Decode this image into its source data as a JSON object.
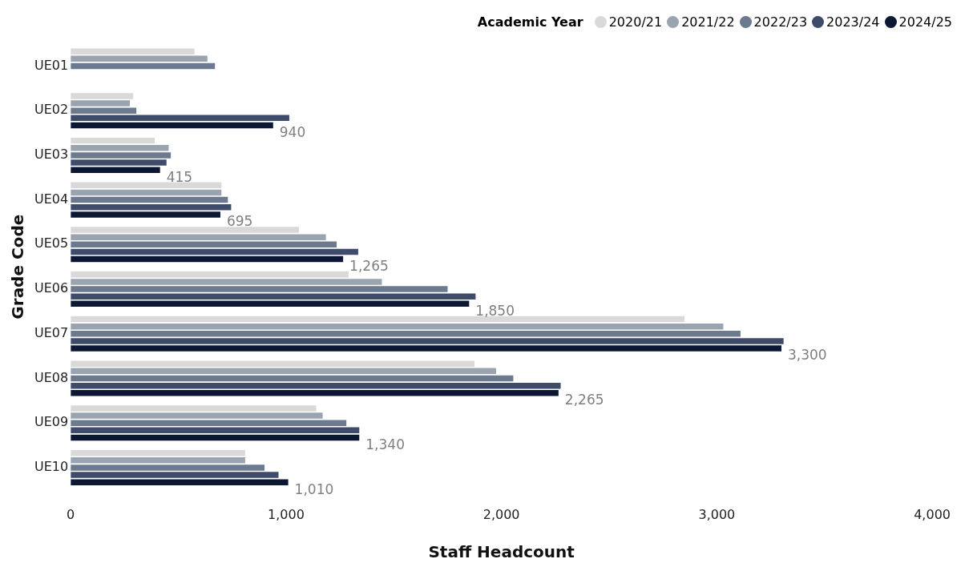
{
  "chart_data": {
    "type": "bar",
    "orientation": "horizontal",
    "xlabel": "Staff Headcount",
    "ylabel": "Grade Code",
    "legend_title": "Academic Year",
    "legend": "top right",
    "grid": false,
    "categories": [
      "UE01",
      "UE02",
      "UE03",
      "UE04",
      "UE05",
      "UE06",
      "UE07",
      "UE08",
      "UE09",
      "UE10"
    ],
    "xlim": [
      0,
      4000
    ],
    "xticks": [
      {
        "value": 0,
        "label": "0"
      },
      {
        "value": 1000,
        "label": "1,000"
      },
      {
        "value": 2000,
        "label": "2,000"
      },
      {
        "value": 3000,
        "label": "3,000"
      },
      {
        "value": 4000,
        "label": "4,000"
      }
    ],
    "series": [
      {
        "name": "2020/21",
        "color": "#d9d9d9",
        "values": [
          575,
          290,
          390,
          700,
          1060,
          1290,
          2850,
          1875,
          1140,
          810
        ]
      },
      {
        "name": "2021/22",
        "color": "#9aa3b0",
        "values": [
          635,
          275,
          455,
          700,
          1185,
          1445,
          3030,
          1975,
          1170,
          810
        ]
      },
      {
        "name": "2022/23",
        "color": "#6b7a8f",
        "values": [
          670,
          305,
          465,
          730,
          1235,
          1750,
          3110,
          2055,
          1280,
          900
        ]
      },
      {
        "name": "2023/24",
        "color": "#3e4b6a",
        "values": [
          null,
          1015,
          445,
          745,
          1335,
          1880,
          3310,
          2275,
          1340,
          965
        ]
      },
      {
        "name": "2024/25",
        "color": "#0b1733",
        "values": [
          null,
          940,
          415,
          695,
          1265,
          1850,
          3300,
          2265,
          1340,
          1010
        ],
        "value_labels": [
          null,
          "940",
          "415",
          "695",
          "1,265",
          "1,850",
          "3,300",
          "2,265",
          "1,340",
          "1,010"
        ]
      }
    ]
  }
}
